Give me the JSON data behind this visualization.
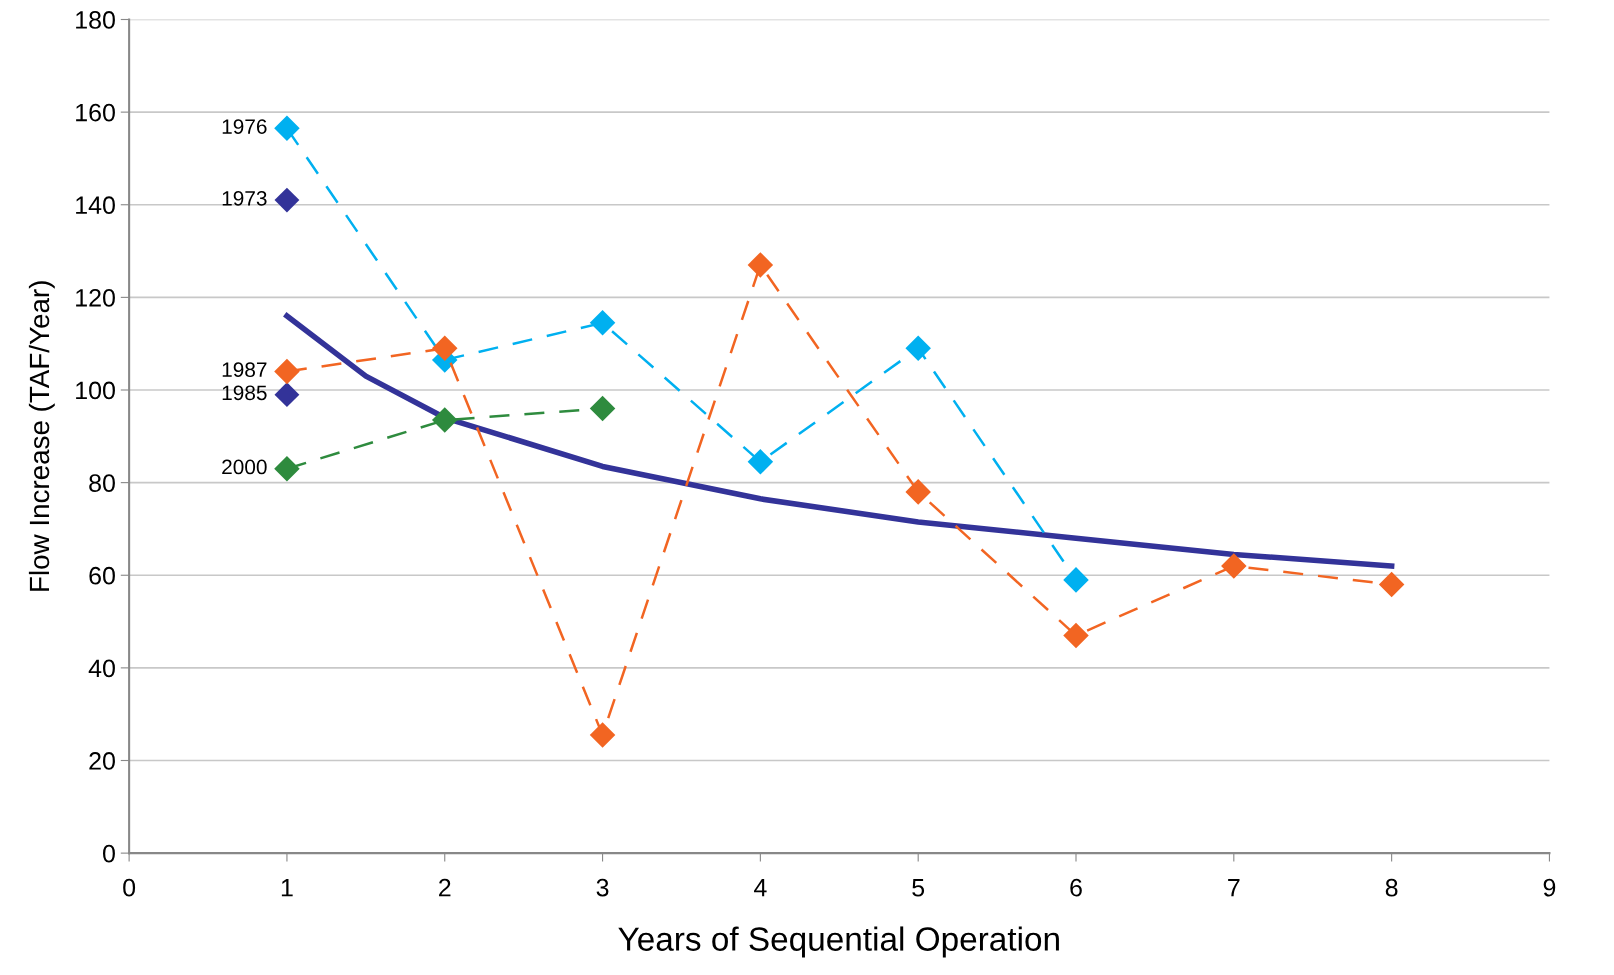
{
  "chart_data": {
    "type": "line",
    "xlabel": "Years of Sequential Operation",
    "ylabel": "Flow Increase (TAF/Year)",
    "xlim": [
      0,
      9
    ],
    "xticks": [
      0,
      1,
      2,
      3,
      4,
      5,
      6,
      7,
      8,
      9
    ],
    "ylim": [
      0,
      180
    ],
    "yticks": [
      0,
      20,
      40,
      60,
      80,
      100,
      120,
      140,
      160,
      180
    ],
    "grid": "y",
    "legend": false,
    "series": [
      {
        "color": "#333399",
        "line_style": "solid",
        "marker": "none",
        "x": [
          1,
          1.5,
          2,
          3,
          4,
          5,
          6,
          7,
          8
        ],
        "values": [
          116,
          103,
          94,
          83.5,
          76.5,
          71.5,
          68,
          64.5,
          62
        ]
      },
      {
        "name": "1973",
        "type": "scatter",
        "color": "#333399",
        "marker": "diamond",
        "x": [
          1
        ],
        "values": [
          141
        ]
      },
      {
        "name": "1985",
        "type": "scatter",
        "color": "#333399",
        "marker": "diamond",
        "x": [
          1
        ],
        "values": [
          99
        ]
      },
      {
        "name": "1976",
        "color": "#00b0f0",
        "line_style": "dashed",
        "marker": "diamond",
        "x": [
          1,
          2,
          3,
          4,
          5,
          6
        ],
        "values": [
          156.5,
          106.5,
          114.5,
          84.5,
          109,
          59
        ]
      },
      {
        "name": "2000",
        "color": "#2e8b3e",
        "line_style": "dashed",
        "marker": "diamond",
        "x": [
          1,
          2,
          3
        ],
        "values": [
          83,
          93.5,
          96
        ]
      },
      {
        "name": "1987",
        "color": "#f26522",
        "line_style": "dashed",
        "marker": "diamond",
        "x": [
          1,
          2,
          3,
          4,
          5,
          6,
          7,
          8
        ],
        "values": [
          104,
          109,
          25.5,
          127,
          78,
          47,
          62,
          58
        ]
      }
    ]
  }
}
